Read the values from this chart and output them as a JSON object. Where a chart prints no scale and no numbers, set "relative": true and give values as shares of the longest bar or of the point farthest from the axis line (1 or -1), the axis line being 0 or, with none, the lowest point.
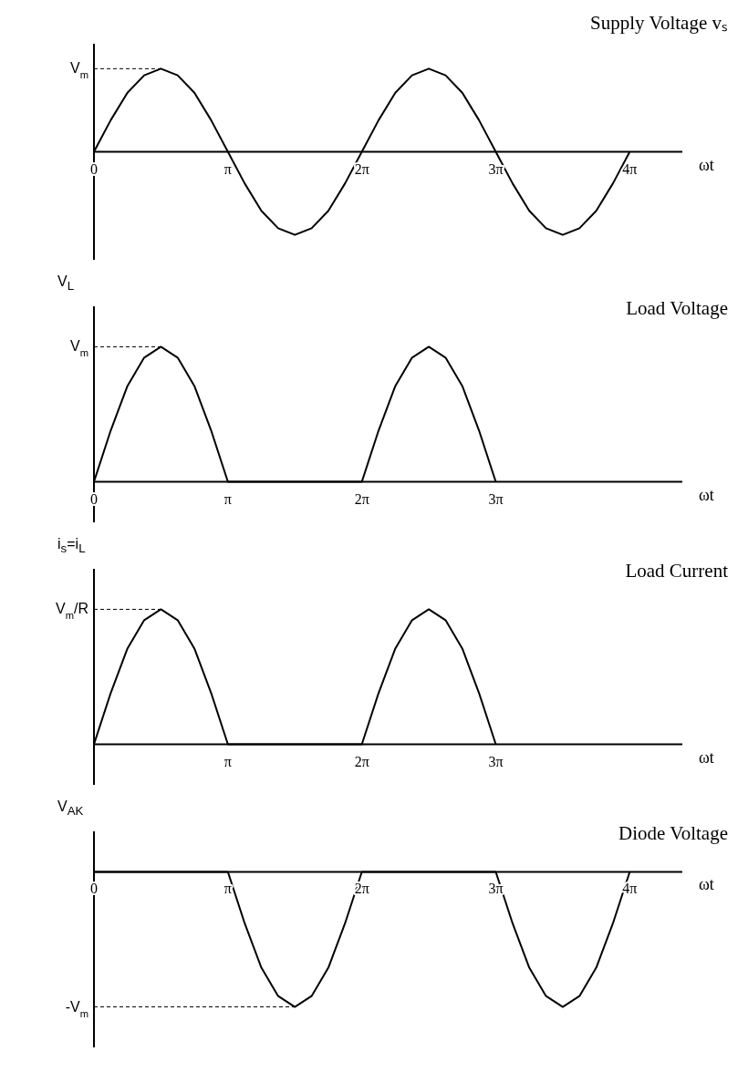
{
  "chart_data": [
    {
      "type": "line",
      "title": "Supply Voltage vₛ",
      "xlabel": "ωt",
      "relative": true,
      "x": [
        0,
        0.3927,
        0.7854,
        1.1781,
        1.5708,
        1.9635,
        2.3562,
        2.7489,
        3.1416,
        3.5343,
        3.927,
        4.3197,
        4.7124,
        5.1051,
        5.4978,
        5.8905,
        6.2832,
        6.6759,
        7.0686,
        7.4613,
        7.854,
        8.2467,
        8.6394,
        9.0321,
        9.4248,
        9.8175,
        10.2102,
        10.6029,
        10.9956,
        11.3883,
        11.781,
        12.1737,
        12.5664
      ],
      "series": [
        {
          "color": "#000000",
          "values": [
            0,
            0.38,
            0.71,
            0.92,
            1,
            0.92,
            0.71,
            0.38,
            0,
            -0.38,
            -0.71,
            -0.92,
            -1,
            -0.92,
            -0.71,
            -0.38,
            0,
            0.38,
            0.71,
            0.92,
            1,
            0.92,
            0.71,
            0.38,
            0,
            -0.38,
            -0.71,
            -0.92,
            -1,
            -0.92,
            -0.71,
            -0.38,
            0
          ]
        }
      ],
      "xlim": [
        0,
        13.8
      ],
      "xticks": [
        {
          "value": 0,
          "label": "0"
        },
        {
          "value": 3.1416,
          "label": "π"
        },
        {
          "value": 6.2832,
          "label": "2π"
        },
        {
          "value": 9.4248,
          "label": "3π"
        },
        {
          "value": 12.5664,
          "label": "4π"
        }
      ],
      "ref_lines": [
        {
          "axis": "y",
          "value": 1,
          "label": "V$_{m}$",
          "line_style": "dashed"
        }
      ]
    },
    {
      "type": "line",
      "title": "Load Voltage",
      "xlabel": "ωt",
      "ylabel": "V$_{L}$",
      "relative": true,
      "x": [
        0,
        0.3927,
        0.7854,
        1.1781,
        1.5708,
        1.9635,
        2.3562,
        2.7489,
        3.1416,
        3.5343,
        3.927,
        4.3197,
        4.7124,
        5.1051,
        5.4978,
        5.8905,
        6.2832,
        6.6759,
        7.0686,
        7.4613,
        7.854,
        8.2467,
        8.6394,
        9.0321,
        9.4248
      ],
      "series": [
        {
          "color": "#000000",
          "values": [
            0,
            0.38,
            0.71,
            0.92,
            1,
            0.92,
            0.71,
            0.38,
            0,
            0,
            0,
            0,
            0,
            0,
            0,
            0,
            0,
            0.38,
            0.71,
            0.92,
            1,
            0.92,
            0.71,
            0.38,
            0
          ]
        }
      ],
      "xlim": [
        0,
        13.8
      ],
      "xticks": [
        {
          "value": 0,
          "label": "0"
        },
        {
          "value": 3.1416,
          "label": "π"
        },
        {
          "value": 6.2832,
          "label": "2π"
        },
        {
          "value": 9.4248,
          "label": "3π"
        }
      ],
      "ref_lines": [
        {
          "axis": "y",
          "value": 1,
          "label": "V$_{m}$",
          "line_style": "dashed"
        }
      ]
    },
    {
      "type": "line",
      "title": "Load Current",
      "xlabel": "ωt",
      "ylabel": "i$_{s}$=i$_{L}$",
      "relative": true,
      "x": [
        0,
        0.3927,
        0.7854,
        1.1781,
        1.5708,
        1.9635,
        2.3562,
        2.7489,
        3.1416,
        3.5343,
        3.927,
        4.3197,
        4.7124,
        5.1051,
        5.4978,
        5.8905,
        6.2832,
        6.6759,
        7.0686,
        7.4613,
        7.854,
        8.2467,
        8.6394,
        9.0321,
        9.4248
      ],
      "series": [
        {
          "color": "#000000",
          "values": [
            0,
            0.38,
            0.71,
            0.92,
            1,
            0.92,
            0.71,
            0.38,
            0,
            0,
            0,
            0,
            0,
            0,
            0,
            0,
            0,
            0.38,
            0.71,
            0.92,
            1,
            0.92,
            0.71,
            0.38,
            0
          ]
        }
      ],
      "xlim": [
        0,
        13.8
      ],
      "xticks": [
        {
          "value": 3.1416,
          "label": "π"
        },
        {
          "value": 6.2832,
          "label": "2π"
        },
        {
          "value": 9.4248,
          "label": "3π"
        }
      ],
      "ref_lines": [
        {
          "axis": "y",
          "value": 1,
          "label": "V$_{m}$/R",
          "line_style": "dashed"
        }
      ]
    },
    {
      "type": "line",
      "title": "Diode Voltage",
      "xlabel": "ωt",
      "ylabel": "V$_{AK}$",
      "relative": true,
      "x": [
        0,
        0.3927,
        0.7854,
        1.1781,
        1.5708,
        1.9635,
        2.3562,
        2.7489,
        3.1416,
        3.5343,
        3.927,
        4.3197,
        4.7124,
        5.1051,
        5.4978,
        5.8905,
        6.2832,
        6.6759,
        7.0686,
        7.4613,
        7.854,
        8.2467,
        8.6394,
        9.0321,
        9.4248,
        9.8175,
        10.2102,
        10.6029,
        10.9956,
        11.3883,
        11.781,
        12.1737,
        12.5664
      ],
      "series": [
        {
          "color": "#000000",
          "values": [
            0,
            0,
            0,
            0,
            0,
            0,
            0,
            0,
            0,
            -0.38,
            -0.71,
            -0.92,
            -1,
            -0.92,
            -0.71,
            -0.38,
            0,
            0,
            0,
            0,
            0,
            0,
            0,
            0,
            0,
            -0.38,
            -0.71,
            -0.92,
            -1,
            -0.92,
            -0.71,
            -0.38,
            0
          ]
        }
      ],
      "xlim": [
        0,
        13.8
      ],
      "xticks": [
        {
          "value": 0,
          "label": "0"
        },
        {
          "value": 3.1416,
          "label": "π"
        },
        {
          "value": 6.2832,
          "label": "2π"
        },
        {
          "value": 9.4248,
          "label": "3π"
        },
        {
          "value": 12.5664,
          "label": "4π"
        }
      ],
      "ref_lines": [
        {
          "axis": "y",
          "value": -1,
          "label": "-V$_{m}$",
          "line_style": "dashed"
        }
      ]
    }
  ]
}
